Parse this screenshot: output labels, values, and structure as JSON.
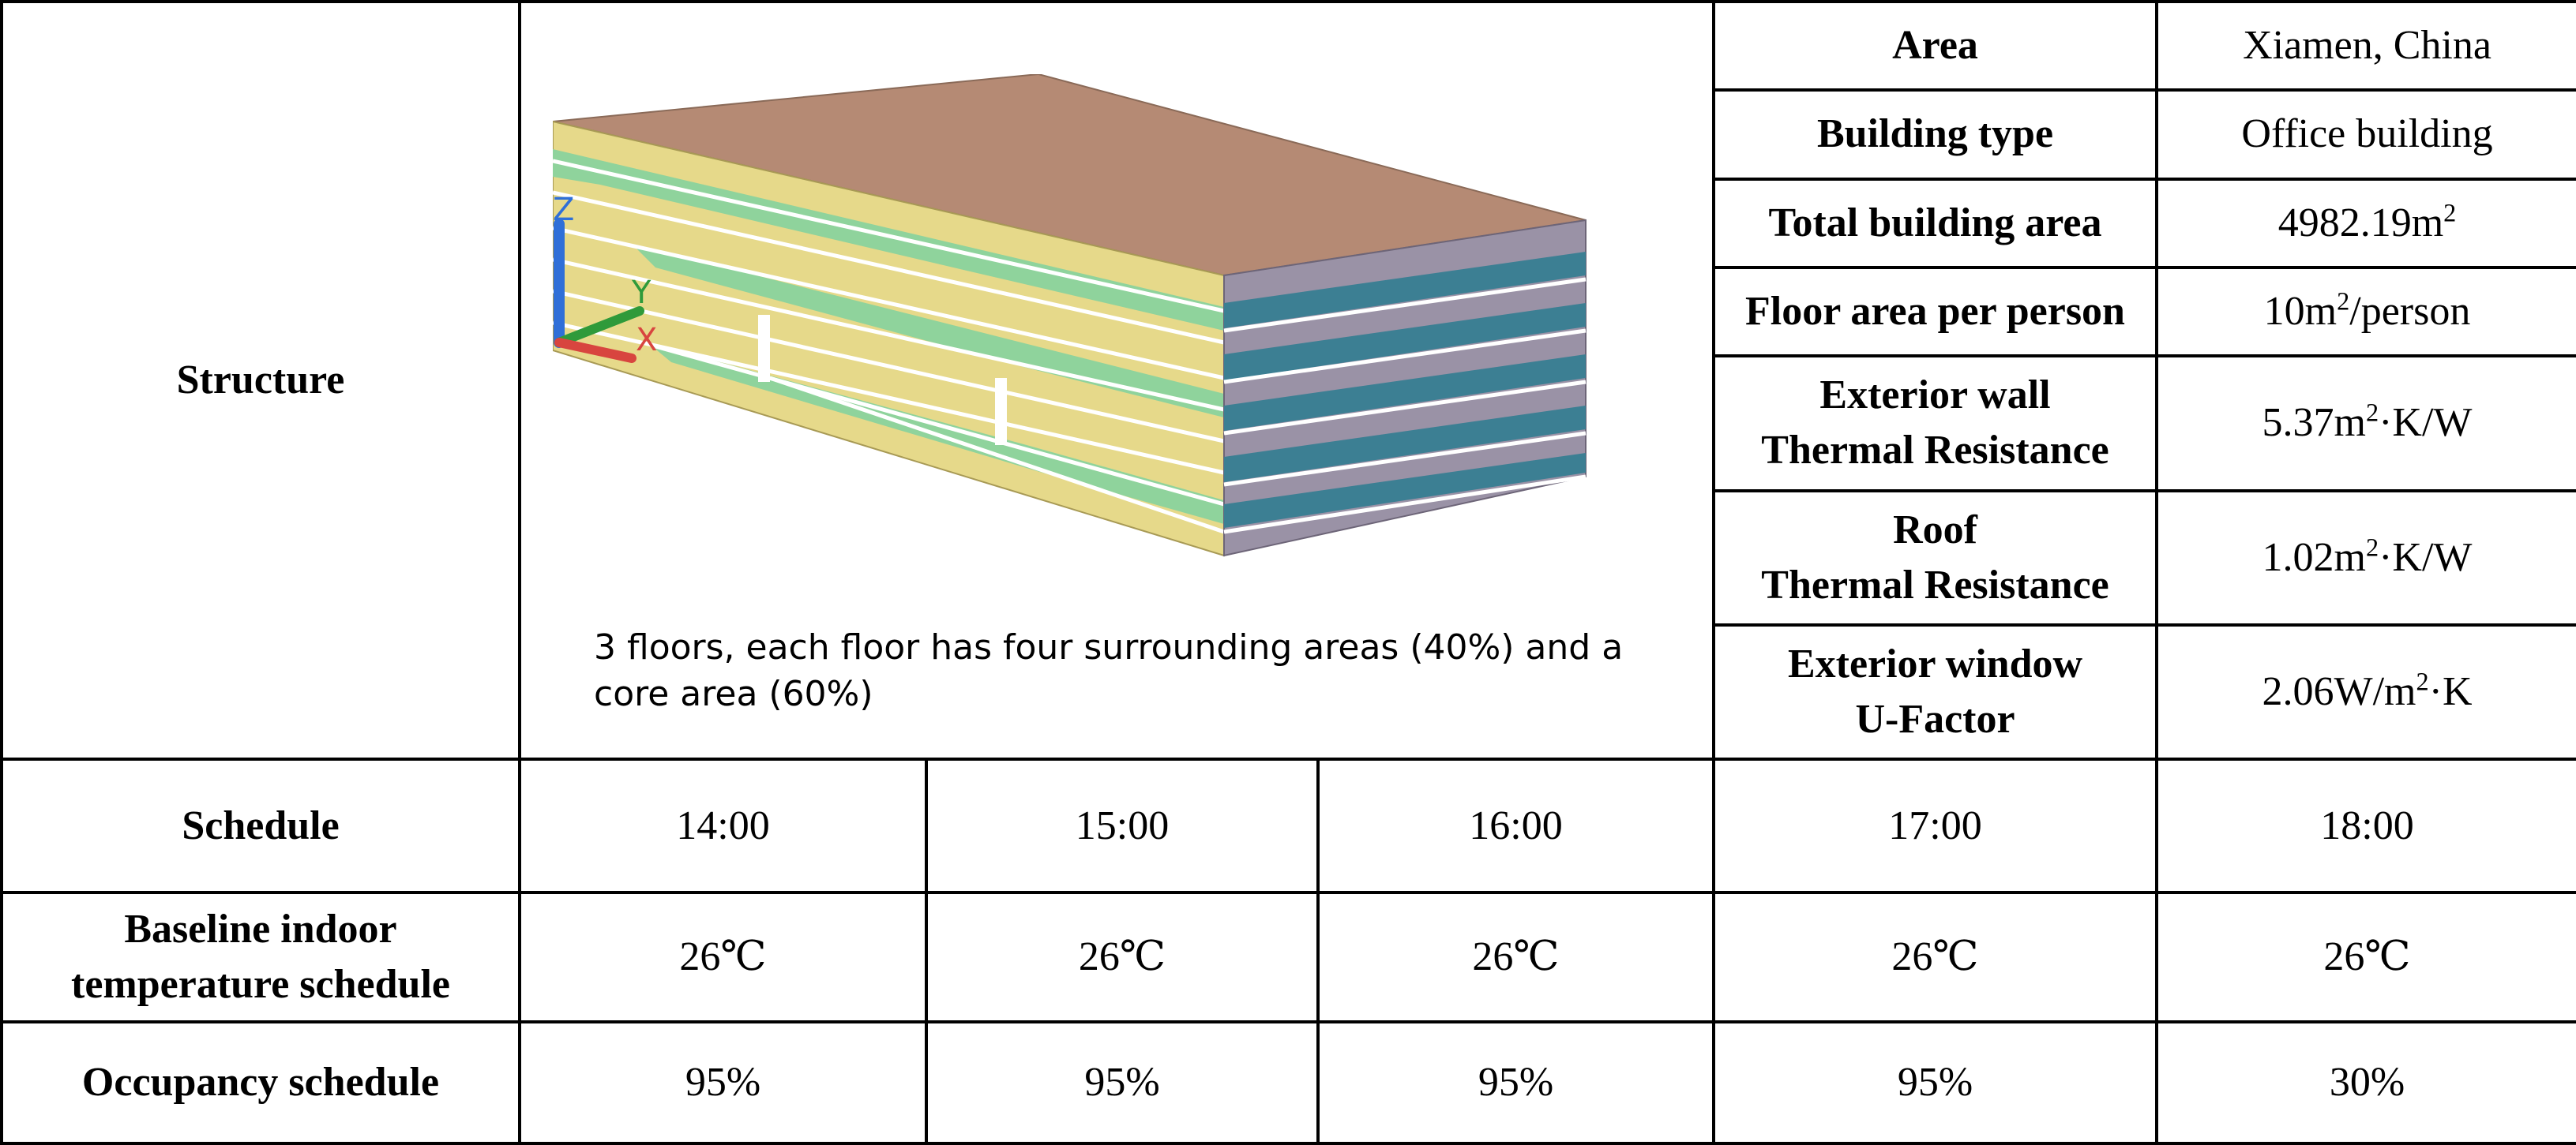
{
  "structure": {
    "label": "Structure",
    "caption": "3 floors, each floor has four surrounding areas (40%)  and a core area  (60%)",
    "axis_labels": {
      "x": "X",
      "y": "Y",
      "z": "Z"
    },
    "colors": {
      "roof": "#b58a74",
      "wall_yellow": "#e6d98a",
      "wall_green": "#8fd39c",
      "wall_blue": "#3c7f93",
      "wall_gray": "#9a92a6"
    }
  },
  "properties": [
    {
      "label": "Area",
      "value_parts": [
        "Xiamen, China"
      ]
    },
    {
      "label": "Building type",
      "value_parts": [
        "Office building"
      ]
    },
    {
      "label": "Total building area",
      "value_parts": [
        "4982.19m",
        "2",
        ""
      ]
    },
    {
      "label": "Floor area per person",
      "value_parts": [
        "10m",
        "2",
        "/person"
      ]
    },
    {
      "label_lines": [
        "Exterior wall",
        "Thermal Resistance"
      ],
      "value_parts": [
        "5.37m",
        "2",
        "·K/W"
      ]
    },
    {
      "label_lines": [
        "Roof",
        "Thermal Resistance"
      ],
      "value_parts": [
        "1.02m",
        "2",
        "·K/W"
      ]
    },
    {
      "label_lines": [
        "Exterior window",
        "U-Factor"
      ],
      "value_parts": [
        "2.06W/m",
        "2",
        "·K"
      ]
    }
  ],
  "schedule": {
    "label": "Schedule",
    "times": [
      "14:00",
      "15:00",
      "16:00",
      "17:00",
      "18:00"
    ],
    "rows": [
      {
        "label_lines": [
          "Baseline indoor",
          "temperature schedule"
        ],
        "values": [
          "26℃",
          "26℃",
          "26℃",
          "26℃",
          "26℃"
        ]
      },
      {
        "label_lines": [
          "Occupancy schedule"
        ],
        "values": [
          "95%",
          "95%",
          "95%",
          "95%",
          "30%"
        ]
      }
    ]
  }
}
